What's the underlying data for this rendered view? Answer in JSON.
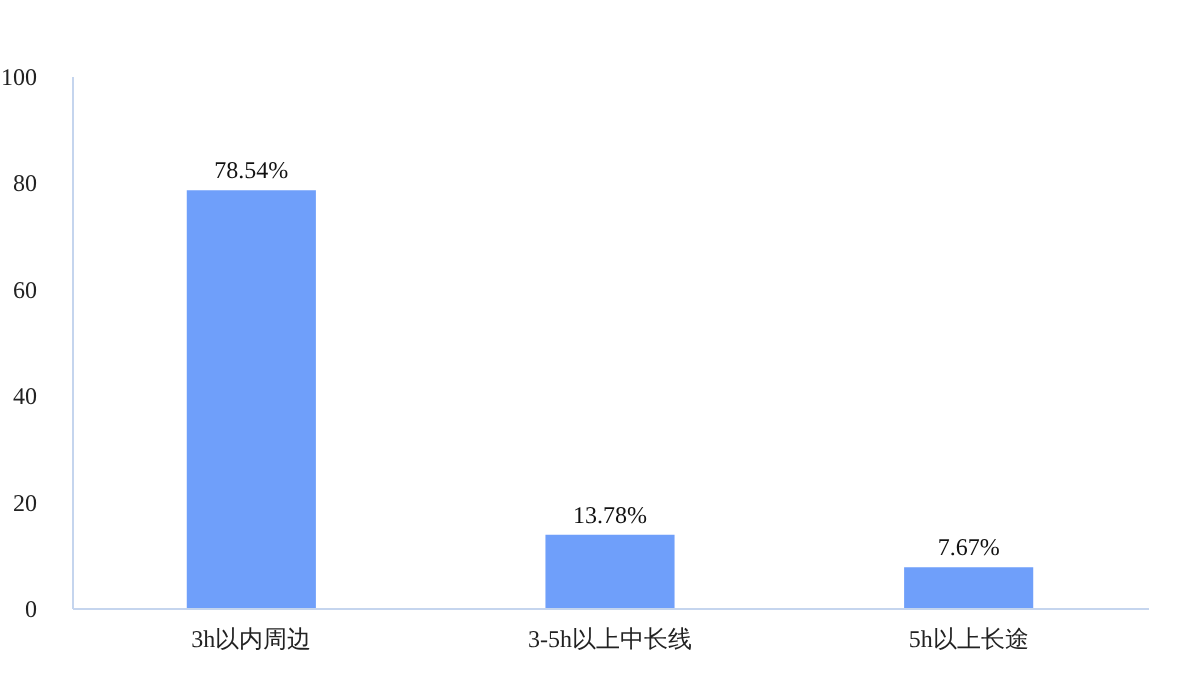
{
  "chart_data": {
    "type": "bar",
    "categories": [
      "3h以内周边",
      "3-5h以上中长线",
      "5h以上长途"
    ],
    "values": [
      78.54,
      13.78,
      7.67
    ],
    "value_labels": [
      "78.54%",
      "13.78%",
      "7.67%"
    ],
    "color": "#6f9ffa",
    "ylim": [
      0,
      100
    ],
    "yticks": [
      0,
      20,
      40,
      60,
      80,
      100
    ],
    "grid": false
  }
}
